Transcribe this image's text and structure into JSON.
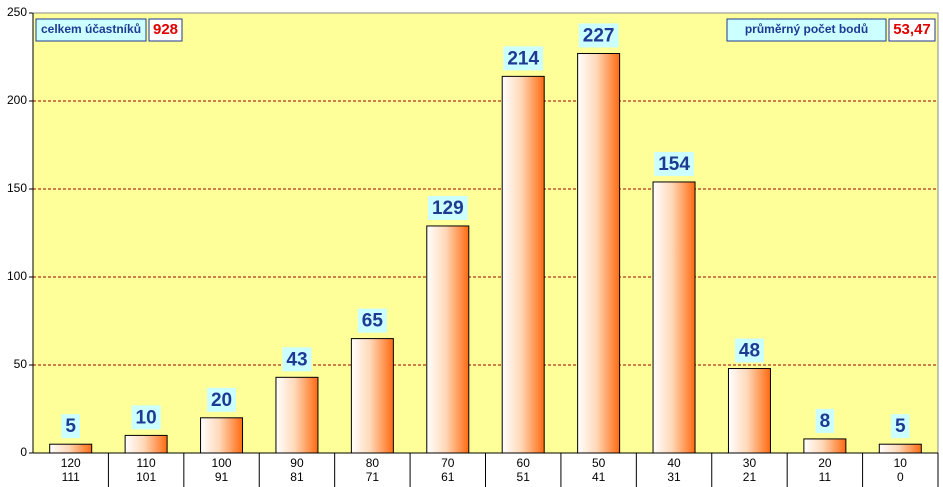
{
  "chart_data": {
    "type": "bar",
    "categories": [
      [
        "120",
        "111"
      ],
      [
        "110",
        "101"
      ],
      [
        "100",
        "91"
      ],
      [
        "90",
        "81"
      ],
      [
        "80",
        "71"
      ],
      [
        "70",
        "61"
      ],
      [
        "60",
        "51"
      ],
      [
        "50",
        "41"
      ],
      [
        "40",
        "31"
      ],
      [
        "30",
        "21"
      ],
      [
        "20",
        "11"
      ],
      [
        "10",
        "0"
      ]
    ],
    "values": [
      5,
      10,
      20,
      43,
      65,
      129,
      214,
      227,
      154,
      48,
      8,
      5
    ],
    "color": "#ff6a10",
    "ylim": [
      0,
      250
    ],
    "yticks": [
      0,
      50,
      100,
      150,
      200,
      250
    ],
    "grid": true,
    "annotations": [
      {
        "text": "celkem účastníků",
        "value": 928
      },
      {
        "text": "průměrný počet bodů",
        "value": {
          "value": 53.47,
          "label": "53,47"
        }
      }
    ]
  }
}
